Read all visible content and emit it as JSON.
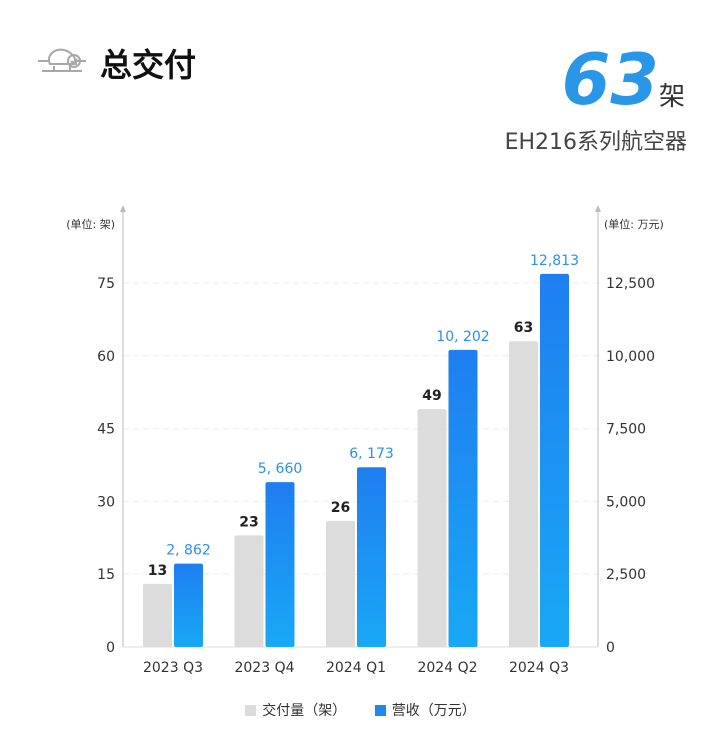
{
  "header": {
    "title": "总交付",
    "icon": "aircraft-delivered-icon",
    "big_number": "63",
    "big_unit": "架",
    "subtitle": "EH216系列航空器"
  },
  "chart_data": {
    "type": "bar",
    "categories": [
      "2023 Q3",
      "2023 Q4",
      "2024 Q1",
      "2024 Q2",
      "2024 Q3"
    ],
    "series": [
      {
        "name": "交付量（架）",
        "axis": "left",
        "color": "#dcdcdc",
        "values": [
          13,
          23,
          26,
          49,
          63
        ],
        "labels": [
          "13",
          "23",
          "26",
          "49",
          "63"
        ]
      },
      {
        "name": "营收（万元）",
        "axis": "right",
        "color": "#1e88f0",
        "values": [
          2862,
          5660,
          6173,
          10202,
          12813
        ],
        "labels": [
          "2, 862",
          "5, 660",
          "6, 173",
          "10, 202",
          "12,813"
        ]
      }
    ],
    "left_axis": {
      "label": "(单位: 架)",
      "ylim": [
        0,
        75
      ],
      "ticks": [
        "0",
        "15",
        "30",
        "45",
        "60",
        "75"
      ]
    },
    "right_axis": {
      "label": "(单位: 万元)",
      "ylim": [
        0,
        12500
      ],
      "ticks": [
        "0",
        "2,500",
        "5,000",
        "7,500",
        "10,000",
        "12,500"
      ]
    },
    "grid": true,
    "legend_position": "bottom"
  }
}
